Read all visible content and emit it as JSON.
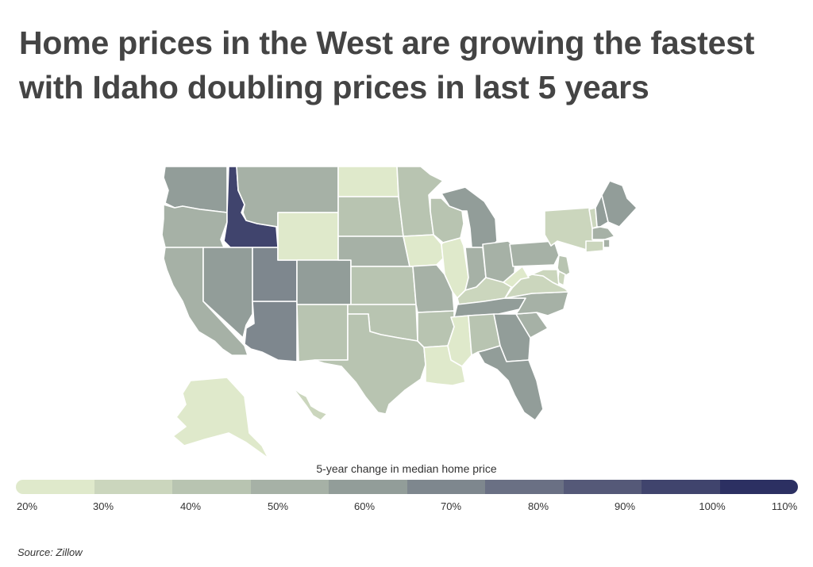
{
  "title": "Home prices in the West are growing the fastest with Idaho doubling prices in last 5 years",
  "legend": {
    "title": "5-year change in median home price",
    "labels": [
      "20%",
      "30%",
      "40%",
      "50%",
      "60%",
      "70%",
      "80%",
      "90%",
      "100%",
      "110%"
    ],
    "colors": [
      "#dfe9cb",
      "#cbd6bd",
      "#b8c4b1",
      "#a6b1a6",
      "#929d99",
      "#7e878e",
      "#6a7084",
      "#555978",
      "#40446d",
      "#2c3062"
    ]
  },
  "source": "Source:  Zillow",
  "chart_data": {
    "type": "choropleth",
    "metric": "5-year change in median home price",
    "unit": "%",
    "scale_min": 20,
    "scale_max": 110,
    "states": [
      {
        "name": "WA",
        "value": 65
      },
      {
        "name": "OR",
        "value": 58
      },
      {
        "name": "CA",
        "value": 55
      },
      {
        "name": "ID",
        "value": 102
      },
      {
        "name": "NV",
        "value": 66
      },
      {
        "name": "AZ",
        "value": 78
      },
      {
        "name": "UT",
        "value": 74
      },
      {
        "name": "MT",
        "value": 58
      },
      {
        "name": "WY",
        "value": 25
      },
      {
        "name": "CO",
        "value": 60
      },
      {
        "name": "NM",
        "value": 45
      },
      {
        "name": "ND",
        "value": 22
      },
      {
        "name": "SD",
        "value": 42
      },
      {
        "name": "NE",
        "value": 50
      },
      {
        "name": "KS",
        "value": 40
      },
      {
        "name": "OK",
        "value": 40
      },
      {
        "name": "TX",
        "value": 48
      },
      {
        "name": "MN",
        "value": 45
      },
      {
        "name": "IA",
        "value": 28
      },
      {
        "name": "MO",
        "value": 52
      },
      {
        "name": "AR",
        "value": 45
      },
      {
        "name": "LA",
        "value": 24
      },
      {
        "name": "WI",
        "value": 48
      },
      {
        "name": "IL",
        "value": 28
      },
      {
        "name": "MI",
        "value": 64
      },
      {
        "name": "IN",
        "value": 50
      },
      {
        "name": "OH",
        "value": 56
      },
      {
        "name": "KY",
        "value": 32
      },
      {
        "name": "TN",
        "value": 66
      },
      {
        "name": "MS",
        "value": 28
      },
      {
        "name": "AL",
        "value": 42
      },
      {
        "name": "GA",
        "value": 62
      },
      {
        "name": "FL",
        "value": 63
      },
      {
        "name": "SC",
        "value": 52
      },
      {
        "name": "NC",
        "value": 58
      },
      {
        "name": "VA",
        "value": 36
      },
      {
        "name": "WV",
        "value": 24
      },
      {
        "name": "PA",
        "value": 54
      },
      {
        "name": "NY",
        "value": 36
      },
      {
        "name": "VT",
        "value": 38
      },
      {
        "name": "NH",
        "value": 62
      },
      {
        "name": "ME",
        "value": 62
      },
      {
        "name": "MA",
        "value": 50
      },
      {
        "name": "RI",
        "value": 56
      },
      {
        "name": "CT",
        "value": 34
      },
      {
        "name": "NJ",
        "value": 42
      },
      {
        "name": "DE",
        "value": 38
      },
      {
        "name": "MD",
        "value": 38
      },
      {
        "name": "AK",
        "value": 22
      },
      {
        "name": "HI",
        "value": 38
      }
    ]
  }
}
